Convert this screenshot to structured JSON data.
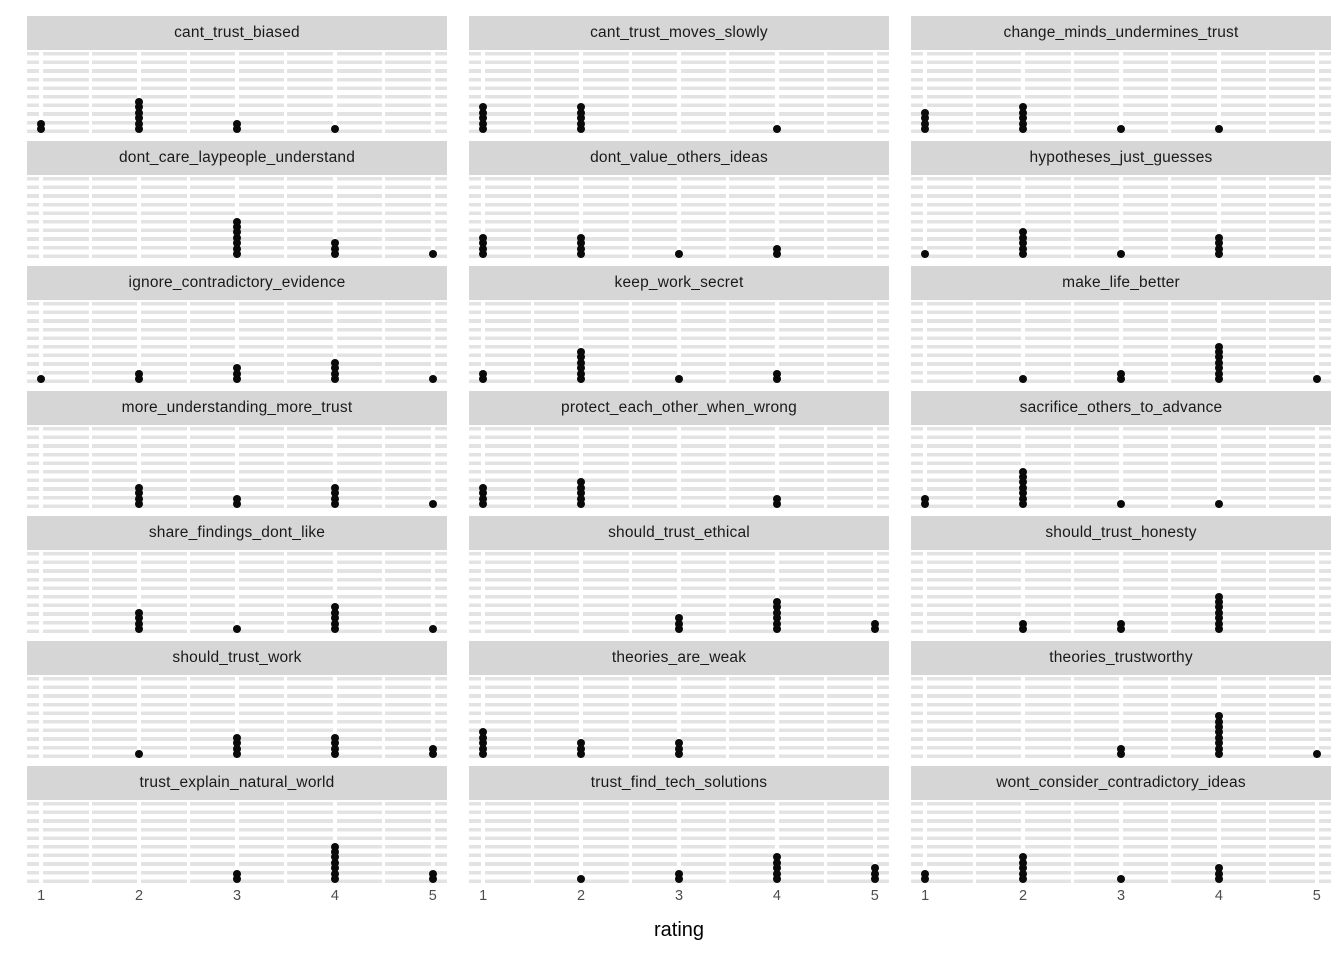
{
  "chart_data": {
    "type": "dotplot",
    "title": "",
    "xlabel": "rating",
    "x_ticks": [
      "1",
      "2",
      "3",
      "4",
      "5"
    ],
    "x_tick_values": [
      1,
      2,
      3,
      4,
      5
    ],
    "x_range": [
      0.855,
      5.145
    ],
    "x_minor_gridlines": [
      1.5,
      2.5,
      3.5,
      4.5
    ],
    "ncol": 3,
    "nrow": 7,
    "n_per_facet": 11,
    "legend": "none",
    "grid": "horizontal-gray-stripes with white vertical gridlines",
    "colors": {
      "dot": "#0a0a0a",
      "strip_background": "#d6d6d6",
      "strip_text": "#1a1a1a",
      "grid_stripe": "#e3e3e3",
      "panel_background": "#ffffff",
      "tick_label": "#4d4d4d",
      "axis_title": "#000000"
    },
    "facets": [
      {
        "title": "cant_trust_biased",
        "counts": {
          "1": 2,
          "2": 6,
          "3": 2,
          "4": 1,
          "5": 0
        }
      },
      {
        "title": "cant_trust_moves_slowly",
        "counts": {
          "1": 5,
          "2": 5,
          "3": 0,
          "4": 1,
          "5": 0
        }
      },
      {
        "title": "change_minds_undermines_trust",
        "counts": {
          "1": 4,
          "2": 5,
          "3": 1,
          "4": 1,
          "5": 0
        }
      },
      {
        "title": "dont_care_laypeople_understand",
        "counts": {
          "1": 0,
          "2": 0,
          "3": 7,
          "4": 3,
          "5": 1
        }
      },
      {
        "title": "dont_value_others_ideas",
        "counts": {
          "1": 4,
          "2": 4,
          "3": 1,
          "4": 2,
          "5": 0
        }
      },
      {
        "title": "hypotheses_just_guesses",
        "counts": {
          "1": 1,
          "2": 5,
          "3": 1,
          "4": 4,
          "5": 0
        }
      },
      {
        "title": "ignore_contradictory_evidence",
        "counts": {
          "1": 1,
          "2": 2,
          "3": 3,
          "4": 4,
          "5": 1
        }
      },
      {
        "title": "keep_work_secret",
        "counts": {
          "1": 2,
          "2": 6,
          "3": 1,
          "4": 2,
          "5": 0
        }
      },
      {
        "title": "make_life_better",
        "counts": {
          "1": 0,
          "2": 1,
          "3": 2,
          "4": 7,
          "5": 1
        }
      },
      {
        "title": "more_understanding_more_trust",
        "counts": {
          "1": 0,
          "2": 4,
          "3": 2,
          "4": 4,
          "5": 1
        }
      },
      {
        "title": "protect_each_other_when_wrong",
        "counts": {
          "1": 4,
          "2": 5,
          "3": 0,
          "4": 2,
          "5": 0
        }
      },
      {
        "title": "sacrifice_others_to_advance",
        "counts": {
          "1": 2,
          "2": 7,
          "3": 1,
          "4": 1,
          "5": 0
        }
      },
      {
        "title": "share_findings_dont_like",
        "counts": {
          "1": 0,
          "2": 4,
          "3": 1,
          "4": 5,
          "5": 1
        }
      },
      {
        "title": "should_trust_ethical",
        "counts": {
          "1": 0,
          "2": 0,
          "3": 3,
          "4": 6,
          "5": 2
        }
      },
      {
        "title": "should_trust_honesty",
        "counts": {
          "1": 0,
          "2": 2,
          "3": 2,
          "4": 7,
          "5": 0
        }
      },
      {
        "title": "should_trust_work",
        "counts": {
          "1": 0,
          "2": 1,
          "3": 4,
          "4": 4,
          "5": 2
        }
      },
      {
        "title": "theories_are_weak",
        "counts": {
          "1": 5,
          "2": 3,
          "3": 3,
          "4": 0,
          "5": 0
        }
      },
      {
        "title": "theories_trustworthy",
        "counts": {
          "1": 0,
          "2": 0,
          "3": 2,
          "4": 8,
          "5": 1
        }
      },
      {
        "title": "trust_explain_natural_world",
        "counts": {
          "1": 0,
          "2": 0,
          "3": 2,
          "4": 7,
          "5": 2
        }
      },
      {
        "title": "trust_find_tech_solutions",
        "counts": {
          "1": 0,
          "2": 1,
          "3": 2,
          "4": 5,
          "5": 3
        }
      },
      {
        "title": "wont_consider_contradictory_ideas",
        "counts": {
          "1": 2,
          "2": 5,
          "3": 1,
          "4": 3,
          "5": 0
        }
      }
    ]
  }
}
